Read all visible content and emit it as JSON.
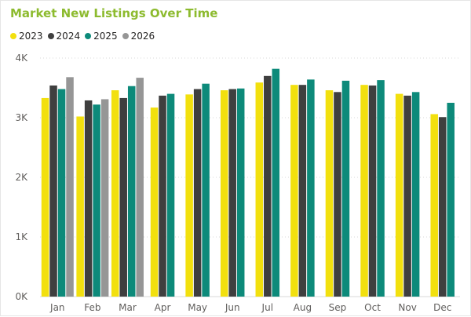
{
  "title": "Market New Listings Over Time",
  "colors": {
    "title": "#8dbb2f",
    "grid": "#d9d9d9",
    "axis_text": "#605e5c"
  },
  "chart_data": {
    "type": "bar",
    "title": "Market New Listings Over Time",
    "xlabel": "",
    "ylabel": "",
    "ylim": [
      0,
      4000
    ],
    "yticks": [
      0,
      1000,
      2000,
      3000,
      4000
    ],
    "ytick_labels": [
      "0K",
      "1K",
      "2K",
      "3K",
      "4K"
    ],
    "grid": true,
    "legend_position": "top-left",
    "categories": [
      "Jan",
      "Feb",
      "Mar",
      "Apr",
      "May",
      "Jun",
      "Jul",
      "Aug",
      "Sep",
      "Oct",
      "Nov",
      "Dec"
    ],
    "series": [
      {
        "name": "2023",
        "color": "#f2e00e",
        "values": [
          3330,
          3020,
          3460,
          3170,
          3390,
          3460,
          3590,
          3550,
          3460,
          3550,
          3400,
          3060
        ]
      },
      {
        "name": "2024",
        "color": "#3f3f3f",
        "values": [
          3540,
          3290,
          3330,
          3370,
          3480,
          3480,
          3700,
          3550,
          3430,
          3540,
          3370,
          3010
        ]
      },
      {
        "name": "2025",
        "color": "#0d8a7a",
        "values": [
          3480,
          3220,
          3530,
          3400,
          3570,
          3490,
          3820,
          3640,
          3620,
          3630,
          3430,
          3250
        ]
      },
      {
        "name": "2026",
        "color": "#969696",
        "values": [
          3680,
          3310,
          3670,
          null,
          null,
          null,
          null,
          null,
          null,
          null,
          null,
          null
        ]
      }
    ]
  }
}
